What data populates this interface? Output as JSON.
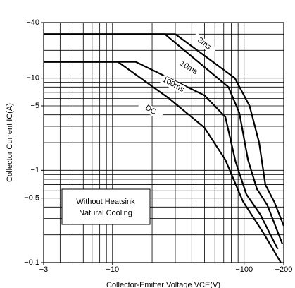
{
  "chart_data": {
    "type": "line",
    "xlabel": "Collector-Emitter Voltage VCE(V)",
    "ylabel": "Collector Current IC(A)",
    "log_x": true,
    "log_y": true,
    "grid": true,
    "color": "#000000",
    "xlim": [
      -3,
      -200
    ],
    "ylim": [
      -0.1,
      -40
    ],
    "xticks": [
      {
        "value": -3,
        "label": "−3"
      },
      {
        "value": -10,
        "label": "−10"
      },
      {
        "value": -100,
        "label": "−100"
      },
      {
        "value": -200,
        "label": "−200"
      }
    ],
    "yticks": [
      {
        "value": -0.1,
        "label": "−0.1"
      },
      {
        "value": -0.5,
        "label": "−0.5"
      },
      {
        "value": -1,
        "label": "−1"
      },
      {
        "value": -5,
        "label": "−5"
      },
      {
        "value": -10,
        "label": "−10"
      },
      {
        "value": -40,
        "label": "−40"
      }
    ],
    "x_grid": [
      -3,
      -4,
      -5,
      -6,
      -7,
      -8,
      -9,
      -10,
      -20,
      -30,
      -40,
      -50,
      -60,
      -70,
      -80,
      -90,
      -100,
      -200
    ],
    "y_grid": [
      -0.1,
      -0.2,
      -0.3,
      -0.4,
      -0.5,
      -0.6,
      -0.7,
      -0.8,
      -0.9,
      -1,
      -2,
      -3,
      -4,
      -5,
      -6,
      -7,
      -8,
      -9,
      -10,
      -20,
      -30,
      -40
    ],
    "annotation": [
      "Without Heatsink",
      "Natural Cooling"
    ],
    "series": [
      {
        "name": "3ms",
        "x": [
          -3,
          -30,
          -85,
          -110,
          -130,
          -145,
          -170,
          -200
        ],
        "values": [
          -30,
          -30,
          -10,
          -5,
          -2,
          -0.7,
          -0.45,
          -0.25
        ]
      },
      {
        "name": "10ms",
        "x": [
          -3,
          -25,
          -76,
          -92,
          -107,
          -125,
          -150,
          -195
        ],
        "values": [
          -30,
          -30,
          -8,
          -4.2,
          -1.3,
          -0.63,
          -0.42,
          -0.16
        ]
      },
      {
        "name": "100ms",
        "x": [
          -3,
          -15,
          -50,
          -72,
          -86,
          -104,
          -133,
          -180
        ],
        "values": [
          -15,
          -15,
          -6.5,
          -3.8,
          -1.25,
          -0.55,
          -0.33,
          -0.14
        ]
      },
      {
        "name": "DC",
        "x": [
          -3,
          -11,
          -27,
          -50,
          -72,
          -98,
          -140,
          -190
        ],
        "values": [
          -15,
          -15,
          -6,
          -2.9,
          -1.3,
          -0.46,
          -0.21,
          -0.1
        ]
      }
    ]
  }
}
